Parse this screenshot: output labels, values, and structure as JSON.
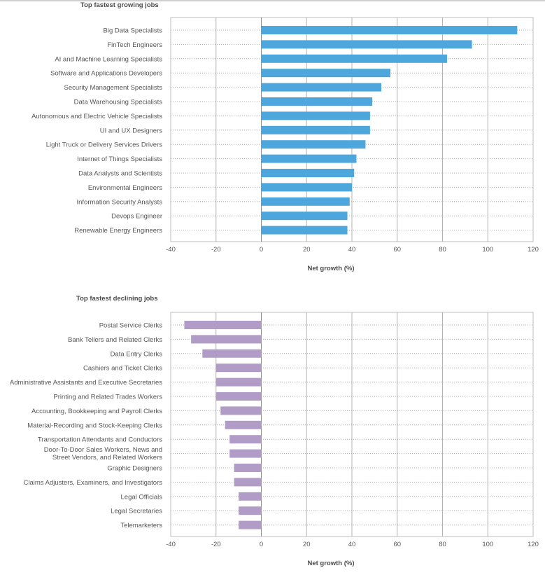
{
  "chart_data": [
    {
      "type": "bar",
      "orientation": "horizontal",
      "title": "Top fastest growing jobs",
      "xlabel": "Net growth (%)",
      "xlim": [
        -40,
        120
      ],
      "xticks": [
        -40,
        -20,
        0,
        20,
        40,
        60,
        80,
        100,
        120
      ],
      "grid": true,
      "color": "#4ea7dc",
      "categories": [
        "Big Data Specialists",
        "FinTech Engineers",
        "AI and Machine Learning Specialists",
        "Software and Applications Developers",
        "Security Management Specialists",
        "Data Warehousing Specialists",
        "Autonomous and Electric Vehicle Specialists",
        "UI and UX Designers",
        "Light Truck or Delivery Services Drivers",
        "Internet of Things Specialists",
        "Data Analysts and Scientists",
        "Environmental Engineers",
        "Information Security Analysts",
        "Devops Engineer",
        "Renewable Energy Engineers"
      ],
      "values": [
        113,
        93,
        82,
        57,
        53,
        49,
        48,
        48,
        46,
        42,
        41,
        40,
        39,
        38,
        38
      ]
    },
    {
      "type": "bar",
      "orientation": "horizontal",
      "title": "Top fastest declining jobs",
      "xlabel": "Net growth (%)",
      "xlim": [
        -40,
        120
      ],
      "xticks": [
        -40,
        -20,
        0,
        20,
        40,
        60,
        80,
        100,
        120
      ],
      "grid": true,
      "color": "#b09cc6",
      "categories": [
        "Postal Service Clerks",
        "Bank Tellers and Related Clerks",
        "Data Entry Clerks",
        "Cashiers and Ticket Clerks",
        "Administrative Assistants and Executive Secretaries",
        "Printing and Related Trades Workers",
        "Accounting, Bookkeeping and Payroll Clerks",
        "Material-Recording and Stock-Keeping Clerks",
        "Transportation Attendants and Conductors",
        "Door-To-Door Sales Workers, News and\nStreet Vendors, and Related Workers",
        "Graphic Designers",
        "Claims Adjusters, Examiners, and Investigators",
        "Legal Officials",
        "Legal Secretaries",
        "Telemarketers"
      ],
      "values": [
        -34,
        -31,
        -26,
        -20,
        -20,
        -20,
        -18,
        -16,
        -14,
        -14,
        -12,
        -12,
        -10,
        -10,
        -10
      ]
    }
  ]
}
